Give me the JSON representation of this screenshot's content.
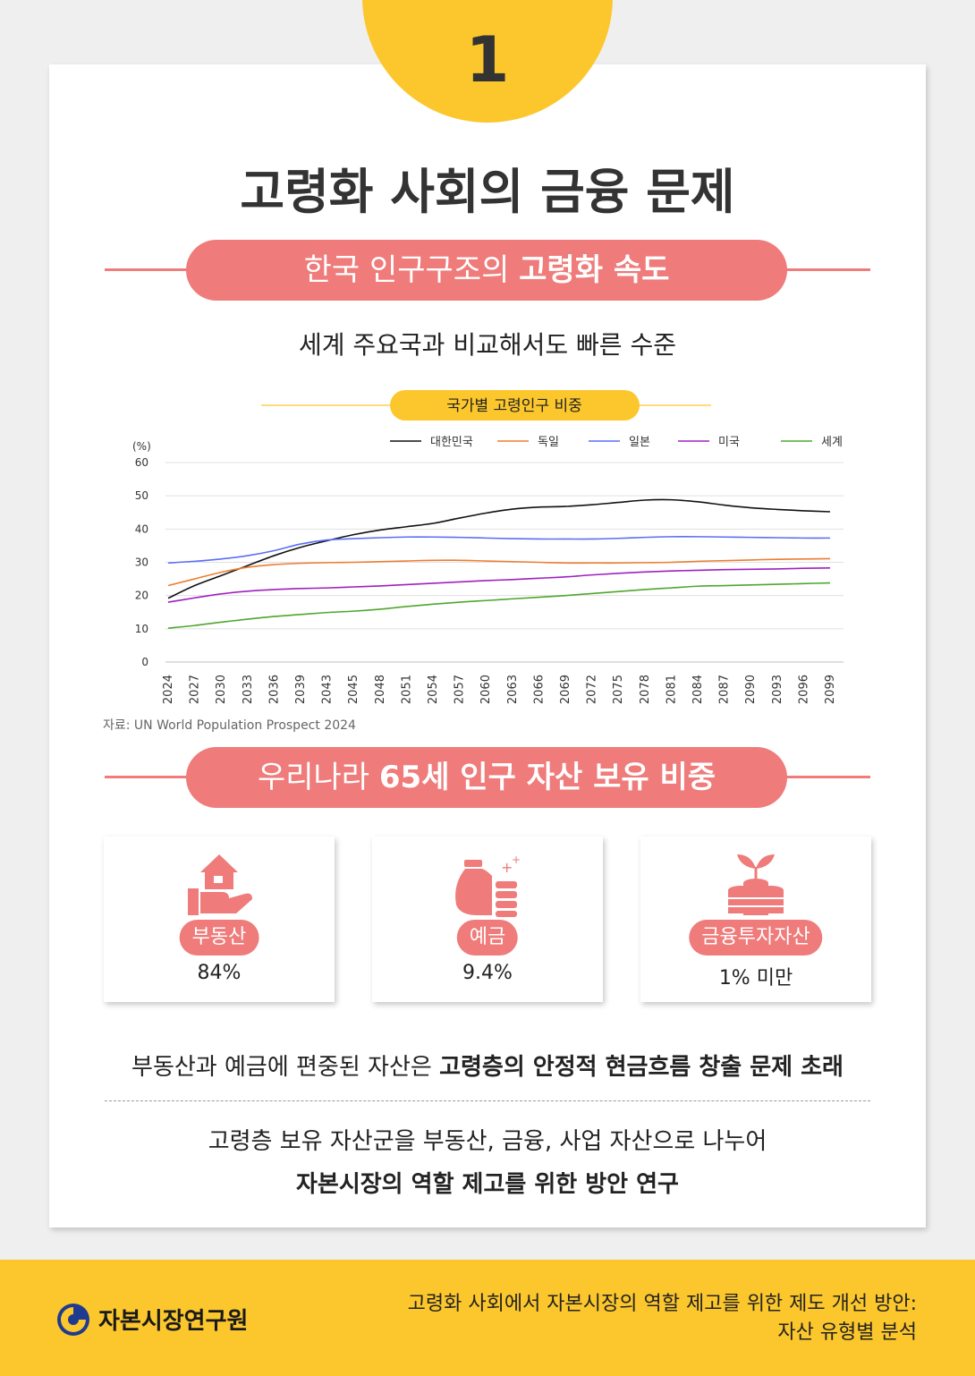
{
  "badge_number": "1",
  "title": "고령화 사회의 금융 문제",
  "section1": {
    "label_normal": "한국 인구구조의 ",
    "label_bold": "고령화 속도",
    "subtitle": "세계 주요국과 비교해서도 빠른 수준"
  },
  "chart_data": {
    "type": "line",
    "title": "국가별 고령인구 비중",
    "ylabel": "(%)",
    "ylim": [
      0,
      60
    ],
    "yticks": [
      0,
      10,
      20,
      30,
      40,
      50,
      60
    ],
    "grid": true,
    "legend_position": "top",
    "x": [
      "2024",
      "2027",
      "2030",
      "2033",
      "2036",
      "2039",
      "2043",
      "2045",
      "2048",
      "2051",
      "2054",
      "2057",
      "2060",
      "2063",
      "2066",
      "2069",
      "2072",
      "2075",
      "2078",
      "2081",
      "2084",
      "2087",
      "2090",
      "2093",
      "2096",
      "2099"
    ],
    "series": [
      {
        "name": "대한민국",
        "color": "#111111",
        "values": [
          19.2,
          23,
          26,
          29,
          32,
          34.5,
          36.5,
          38.3,
          39.7,
          40.7,
          41.7,
          43.3,
          44.8,
          46.0,
          46.6,
          46.8,
          47.3,
          48.0,
          48.7,
          48.8,
          48.2,
          47.2,
          46.4,
          45.9,
          45.5,
          45.2
        ]
      },
      {
        "name": "독일",
        "color": "#ed7d31",
        "values": [
          23,
          25,
          27,
          28.5,
          29.3,
          29.7,
          29.9,
          30.0,
          30.2,
          30.4,
          30.6,
          30.6,
          30.4,
          30.2,
          30.0,
          29.8,
          29.8,
          29.8,
          29.9,
          30.0,
          30.3,
          30.5,
          30.7,
          30.9,
          31.0,
          31.1
        ]
      },
      {
        "name": "일본",
        "color": "#5b6ef5",
        "values": [
          29.8,
          30.3,
          31.0,
          32.0,
          33.5,
          35.5,
          36.7,
          37.1,
          37.4,
          37.6,
          37.6,
          37.5,
          37.3,
          37.1,
          37.0,
          37.0,
          37.0,
          37.2,
          37.5,
          37.7,
          37.7,
          37.6,
          37.5,
          37.4,
          37.3,
          37.3
        ]
      },
      {
        "name": "미국",
        "color": "#a020c0",
        "values": [
          18,
          19.3,
          20.5,
          21.3,
          21.8,
          22.1,
          22.3,
          22.6,
          22.9,
          23.3,
          23.7,
          24.1,
          24.5,
          24.8,
          25.2,
          25.6,
          26.2,
          26.7,
          27.1,
          27.4,
          27.6,
          27.8,
          27.9,
          28.0,
          28.2,
          28.3
        ]
      },
      {
        "name": "세계",
        "color": "#4ea72e",
        "values": [
          10.2,
          11.0,
          12.0,
          12.9,
          13.7,
          14.3,
          14.9,
          15.3,
          15.9,
          16.7,
          17.4,
          18.0,
          18.5,
          19.0,
          19.5,
          20.0,
          20.6,
          21.2,
          21.8,
          22.3,
          22.8,
          23.0,
          23.2,
          23.4,
          23.6,
          23.8
        ]
      }
    ]
  },
  "source": "자료: UN World Population Prospect 2024",
  "section2": {
    "label_normal": "우리나라 ",
    "label_bold": "65세 인구 자산 보유 비중",
    "stats": [
      {
        "icon": "house-hand-icon",
        "label": "부동산",
        "value": "84%"
      },
      {
        "icon": "money-bag-coins-icon",
        "label": "예금",
        "value": "9.4%"
      },
      {
        "icon": "sprout-coins-icon",
        "label": "금융투자자산",
        "value": "1% 미만"
      }
    ]
  },
  "note1": {
    "normal": "부동산과 예금에 편중된 자산은 ",
    "bold": "고령층의 안정적 현금흐름 창출 문제 초래"
  },
  "note2": "고령층 보유 자산군을 부동산, 금융, 사업 자산으로 나누어",
  "note3": "자본시장의 역할 제고를 위한 방안 연구",
  "footer": {
    "logo_text": "자본시장연구원",
    "line1": "고령화 사회에서 자본시장의 역할  제고를 위한 제도 개선 방안:",
    "line2": "자산 유형별 분석"
  },
  "colors": {
    "accent_pink": "#ef7b7b",
    "accent_yellow": "#fcc72c"
  }
}
